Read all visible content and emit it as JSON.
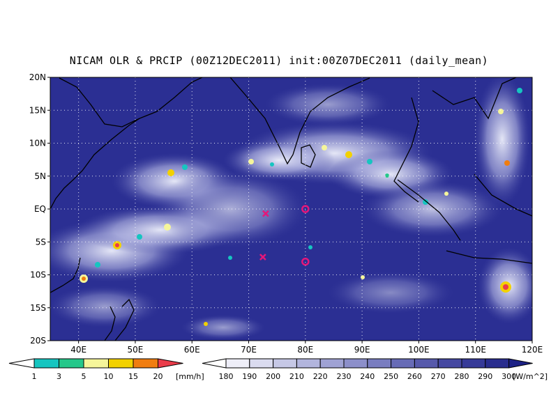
{
  "title": "NICAM OLR & PRCIP (00Z12DEC2011) init:00Z07DEC2011 (daily_mean)",
  "map": {
    "lon_range": [
      35,
      120
    ],
    "lat_range": [
      -20,
      20
    ],
    "lat_labels": [
      "20N",
      "15N",
      "10N",
      "5N",
      "EQ",
      "5S",
      "10S",
      "15S",
      "20S"
    ],
    "lon_labels": [
      "40E",
      "50E",
      "60E",
      "70E",
      "80E",
      "90E",
      "100E",
      "110E",
      "120E"
    ],
    "background_color": "#2b2f93",
    "markers": [
      {
        "type": "cross",
        "lon": 73.0,
        "lat": -0.7,
        "color": "#e4177a"
      },
      {
        "type": "cross",
        "lon": 72.5,
        "lat": -7.3,
        "color": "#e4177a"
      },
      {
        "type": "circle",
        "lon": 80.0,
        "lat": 0.0,
        "color": "#e4177a"
      },
      {
        "type": "circle",
        "lon": 80.0,
        "lat": -8.0,
        "color": "#e4177a"
      }
    ]
  },
  "precip_colorbar": {
    "labels": [
      "1",
      "3",
      "5",
      "10",
      "15",
      "20"
    ],
    "unit": "[mm/h]",
    "colors": [
      "#16c5c0",
      "#25c78a",
      "#f5f59a",
      "#f2d100",
      "#f07d10",
      "#ea3c4a"
    ]
  },
  "olr_colorbar": {
    "labels": [
      "180",
      "190",
      "200",
      "210",
      "220",
      "230",
      "240",
      "250",
      "260",
      "270",
      "280",
      "290",
      "300"
    ],
    "unit": "[W/m^2]",
    "colors": [
      "#eeeef8",
      "#dadbef",
      "#c6c8e6",
      "#b2b5dd",
      "#9fa2d4",
      "#8c8fca",
      "#797dc0",
      "#676bb6",
      "#5659ab",
      "#4548a1",
      "#363a98",
      "#292d8e",
      "#1d2286"
    ]
  }
}
